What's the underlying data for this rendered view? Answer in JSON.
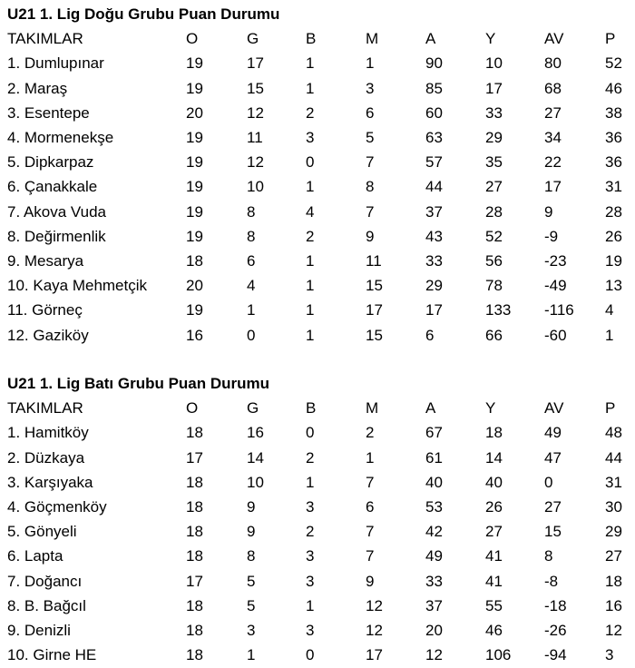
{
  "tables": [
    {
      "title": "U21 1. Lig Doğu Grubu Puan Durumu",
      "headers": [
        "TAKIMLAR",
        "O",
        "G",
        "B",
        "M",
        "A",
        "Y",
        "AV",
        "P"
      ],
      "rows": [
        [
          "1. Dumlupınar",
          "19",
          "17",
          "1",
          "1",
          "90",
          "10",
          "80",
          "52"
        ],
        [
          "2. Maraş",
          "19",
          "15",
          "1",
          "3",
          "85",
          "17",
          "68",
          "46"
        ],
        [
          "3. Esentepe",
          "20",
          "12",
          "2",
          "6",
          "60",
          "33",
          "27",
          "38"
        ],
        [
          "4. Mormenekşe",
          "19",
          "11",
          "3",
          "5",
          "63",
          "29",
          "34",
          "36"
        ],
        [
          "5. Dipkarpaz",
          "19",
          "12",
          "0",
          "7",
          "57",
          "35",
          "22",
          "36"
        ],
        [
          "6. Çanakkale",
          "19",
          "10",
          "1",
          "8",
          "44",
          "27",
          "17",
          "31"
        ],
        [
          "7. Akova Vuda",
          "19",
          "8",
          "4",
          "7",
          "37",
          "28",
          "9",
          "28"
        ],
        [
          "8. Değirmenlik",
          "19",
          "8",
          "2",
          "9",
          "43",
          "52",
          "-9",
          "26"
        ],
        [
          "9. Mesarya",
          "18",
          "6",
          "1",
          "11",
          "33",
          "56",
          "-23",
          "19"
        ],
        [
          "10. Kaya Mehmetçik",
          "20",
          "4",
          "1",
          "15",
          "29",
          "78",
          "-49",
          "13"
        ],
        [
          "11. Görneç",
          "19",
          "1",
          "1",
          "17",
          "17",
          "133",
          "-116",
          "4"
        ],
        [
          "12. Gaziköy",
          "16",
          "0",
          "1",
          "15",
          "6",
          "66",
          "-60",
          "1"
        ]
      ]
    },
    {
      "title": "U21 1. Lig Batı Grubu Puan Durumu",
      "headers": [
        "TAKIMLAR",
        "O",
        "G",
        "B",
        "M",
        "A",
        "Y",
        "AV",
        "P"
      ],
      "rows": [
        [
          "1. Hamitköy",
          "18",
          "16",
          "0",
          "2",
          "67",
          "18",
          "49",
          "48"
        ],
        [
          "2. Düzkaya",
          "17",
          "14",
          "2",
          "1",
          "61",
          "14",
          "47",
          "44"
        ],
        [
          "3. Karşıyaka",
          "18",
          "10",
          "1",
          "7",
          "40",
          "40",
          "0",
          "31"
        ],
        [
          "4. Göçmenköy",
          "18",
          "9",
          "3",
          "6",
          "53",
          "26",
          "27",
          "30"
        ],
        [
          "5. Gönyeli",
          "18",
          "9",
          "2",
          "7",
          "42",
          "27",
          "15",
          "29"
        ],
        [
          "6. Lapta",
          "18",
          "8",
          "3",
          "7",
          "49",
          "41",
          "8",
          "27"
        ],
        [
          "7. Doğancı",
          "17",
          "5",
          "3",
          "9",
          "33",
          "41",
          "-8",
          "18"
        ],
        [
          "8. B. Bağcıl",
          "18",
          "5",
          "1",
          "12",
          "37",
          "55",
          "-18",
          "16"
        ],
        [
          "9. Denizli",
          "18",
          "3",
          "3",
          "12",
          "20",
          "46",
          "-26",
          "12"
        ],
        [
          "10. Girne HE",
          "18",
          "1",
          "0",
          "17",
          "12",
          "106",
          "-94",
          "3"
        ]
      ]
    }
  ]
}
